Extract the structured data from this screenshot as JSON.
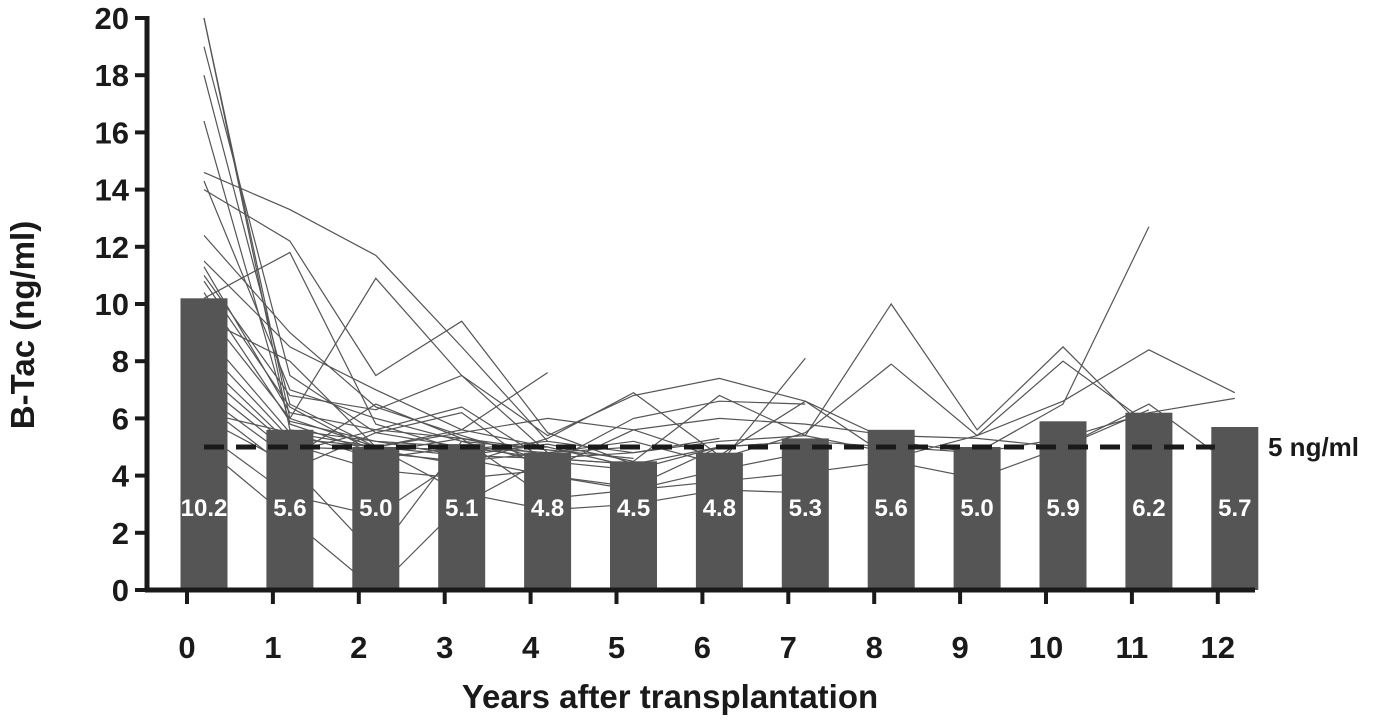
{
  "chart_data": {
    "type": "bar",
    "title": "",
    "xlabel": "Years after transplantation",
    "ylabel": "B-Tac (ng/ml)",
    "ylim": [
      0,
      20
    ],
    "yticks": [
      0,
      2,
      4,
      6,
      8,
      10,
      12,
      14,
      16,
      18,
      20
    ],
    "categories": [
      "0",
      "1",
      "2",
      "3",
      "4",
      "5",
      "6",
      "7",
      "8",
      "9",
      "10",
      "11",
      "12"
    ],
    "values": [
      10.2,
      5.6,
      5.0,
      5.1,
      4.8,
      4.5,
      4.8,
      5.3,
      5.6,
      5.0,
      5.9,
      6.2,
      5.7
    ],
    "value_labels": [
      "10.2",
      "5.6",
      "5.0",
      "5.1",
      "4.8",
      "4.5",
      "4.8",
      "5.3",
      "5.6",
      "5.0",
      "5.9",
      "6.2",
      "5.7"
    ],
    "bar_color": "#555555",
    "line_color": "#555555",
    "reference_line": {
      "value": 5,
      "label": "5 ng/ml",
      "style": "dashed",
      "color": "#1a1a1a"
    },
    "individual_series": [
      [
        20.0,
        5.6,
        5.2,
        5.0,
        4.8
      ],
      [
        20.0,
        6.0,
        5.0,
        4.7,
        4.6,
        4.4
      ],
      [
        19.0,
        7.5,
        5.5,
        5.0,
        4.8
      ],
      [
        18.0,
        6.5,
        5.0,
        4.9,
        5.0
      ],
      [
        16.4,
        5.8,
        4.8,
        5.3,
        4.7
      ],
      [
        14.6,
        13.3,
        11.7,
        8.5,
        5.2,
        4.8,
        5.3
      ],
      [
        14.3,
        7.0,
        6.0,
        5.2,
        4.9
      ],
      [
        14.0,
        12.2,
        7.5,
        9.4,
        5.5,
        4.4,
        5.0
      ],
      [
        12.4,
        9.0,
        6.4,
        5.4,
        4.5
      ],
      [
        11.5,
        8.5,
        7.0,
        5.6,
        5.0,
        4.3
      ],
      [
        11.3,
        6.2,
        5.6,
        5.3,
        4.9,
        4.6
      ],
      [
        11.0,
        6.8,
        6.3,
        7.5,
        5.4,
        6.8,
        7.4,
        6.6,
        5.2,
        4.8,
        5.3,
        6.2,
        6.7
      ],
      [
        10.8,
        6.4,
        4.8,
        4.5,
        4.8,
        5.0
      ],
      [
        10.4,
        5.9,
        5.2,
        4.7,
        5.1,
        4.5,
        6.8,
        5.4,
        10.0,
        5.6,
        8.5,
        5.5
      ],
      [
        10.2,
        11.8,
        5.8,
        4.9,
        5.2
      ],
      [
        9.8,
        6.0,
        10.9,
        7.5,
        4.8,
        5.2,
        4.4,
        8.1
      ],
      [
        9.5,
        8.0,
        5.0,
        5.6,
        7.6
      ],
      [
        9.0,
        5.5,
        4.6,
        5.0,
        4.6,
        4.8,
        5.2,
        5.4,
        4.8
      ],
      [
        8.5,
        5.3,
        5.0,
        5.5,
        6.0,
        5.6,
        6.0,
        5.8,
        5.4,
        5.3,
        5.0,
        6.5,
        4.3
      ],
      [
        8.0,
        5.1,
        4.2,
        3.9,
        4.2,
        5.6,
        4.6,
        5.5,
        7.9,
        5.4,
        8.0,
        5.8
      ],
      [
        7.6,
        5.0,
        4.9,
        4.4,
        5.3,
        6.9,
        4.7,
        6.6,
        4.6,
        5.4,
        6.6,
        8.4,
        6.9
      ],
      [
        7.2,
        4.8,
        5.6,
        6.4,
        4.5,
        4.2,
        5.0,
        5.2,
        5.0,
        4.8,
        6.5,
        12.7
      ],
      [
        6.8,
        4.6,
        6.5,
        5.3,
        3.2,
        3.5,
        3.8,
        4.1,
        4.5,
        3.9,
        5.0,
        6.3
      ],
      [
        6.5,
        4.2,
        5.5,
        6.2,
        4.0,
        3.6,
        5.0,
        5.2
      ],
      [
        6.2,
        5.5,
        5.0,
        3.4,
        2.8,
        3.0,
        3.5,
        3.4
      ],
      [
        6.0,
        4.4,
        1.2,
        5.2,
        4.4,
        6.0,
        6.6,
        6.5
      ],
      [
        5.5,
        3.3,
        2.6,
        4.6,
        4.0,
        3.5,
        4.2,
        4.8
      ],
      [
        5.0,
        2.5,
        0.0,
        3.0,
        4.6,
        4.4
      ]
    ]
  }
}
